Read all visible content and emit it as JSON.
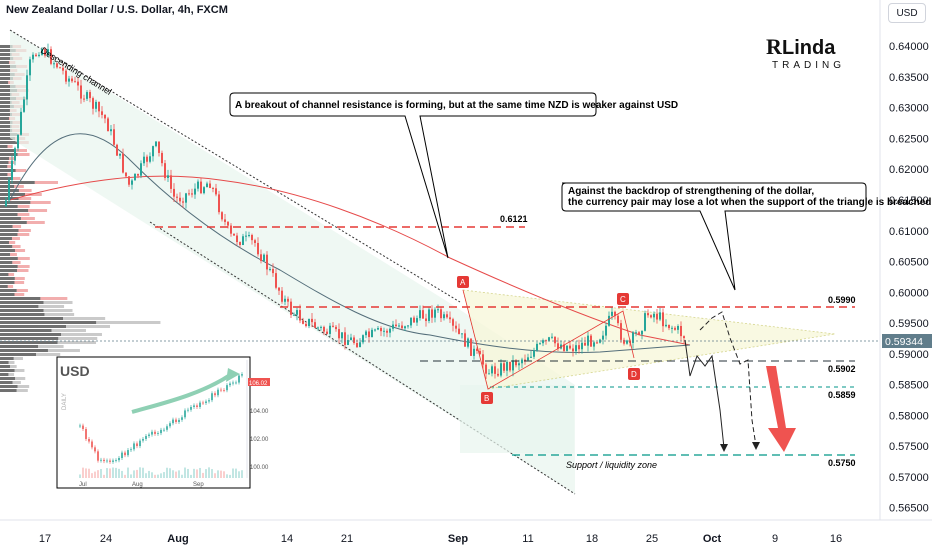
{
  "header": {
    "title": "New Zealand Dollar / U.S. Dollar, 4h, FXCM",
    "currency_button": "USD"
  },
  "logo": {
    "line1": "Linda",
    "line2": "TRADING"
  },
  "colors": {
    "up": "#26a69a",
    "down": "#ef5350",
    "ma_red": "#e64a4a",
    "ma_gray": "#546e7a",
    "price_badge": "#607d8b",
    "arrow_red": "#ef5350"
  },
  "annotations": {
    "callout1": "A breakout of channel resistance is forming, but at the same time NZD is weaker against USD",
    "callout2_line1": "Against the backdrop of strengthening of the dollar,",
    "callout2_line2": "the currency pair may lose a lot when the support of the triangle is breached",
    "channel_label": "Descending channel",
    "zone_label": "Support / liquidity zone",
    "point_a": "A",
    "point_b": "B",
    "point_c": "C",
    "point_d": "D"
  },
  "levels": [
    {
      "value": 0.6121,
      "label": "0.6121"
    },
    {
      "value": 0.599,
      "label": "0.5990"
    },
    {
      "value": 0.5902,
      "label": "0.5902"
    },
    {
      "value": 0.5859,
      "label": "0.5859"
    },
    {
      "value": 0.575,
      "label": "0.5750"
    }
  ],
  "current_price": "0.59344",
  "inset": {
    "title": "USD",
    "badge": "106.02",
    "axis_label": "DAILY",
    "y_ticks": [
      "104.00",
      "102.00",
      "100.00"
    ],
    "x_ticks": [
      "Jul",
      "Aug",
      "Sep"
    ]
  },
  "chart_data": {
    "type": "candlestick",
    "title": "New Zealand Dollar / U.S. Dollar, 4h, FXCM",
    "ylim": [
      0.563,
      0.6475
    ],
    "y_ticks": [
      "0.64000",
      "0.63500",
      "0.63000",
      "0.62500",
      "0.62000",
      "0.61500",
      "0.61000",
      "0.60500",
      "0.60000",
      "0.59500",
      "0.59000",
      "0.58500",
      "0.58000",
      "0.57500",
      "0.57000",
      "0.56500"
    ],
    "x_ticks": [
      "17",
      "24",
      "Aug",
      "14",
      "21",
      "Sep",
      "11",
      "18",
      "25",
      "Oct",
      "9",
      "16"
    ],
    "ohlc_close_path": [
      {
        "x": "Jul 14",
        "close": 0.614
      },
      {
        "x": "Jul 17",
        "close": 0.637
      },
      {
        "x": "Jul 20",
        "close": 0.64
      },
      {
        "x": "Jul 24",
        "close": 0.628
      },
      {
        "x": "Jul 27",
        "close": 0.617
      },
      {
        "x": "Aug 1",
        "close": 0.624
      },
      {
        "x": "Aug 3",
        "close": 0.615
      },
      {
        "x": "Aug 7",
        "close": 0.618
      },
      {
        "x": "Aug 9",
        "close": 0.609
      },
      {
        "x": "Aug 11",
        "close": 0.608
      },
      {
        "x": "Aug 15",
        "close": 0.597
      },
      {
        "x": "Aug 18",
        "close": 0.594
      },
      {
        "x": "Aug 22",
        "close": 0.592
      },
      {
        "x": "Aug 25",
        "close": 0.594
      },
      {
        "x": "Aug 29",
        "close": 0.597
      },
      {
        "x": "Sep 1",
        "close": 0.592
      },
      {
        "x": "Sep 4",
        "close": 0.587
      },
      {
        "x": "Sep 8",
        "close": 0.589
      },
      {
        "x": "Sep 12",
        "close": 0.592
      },
      {
        "x": "Sep 15",
        "close": 0.591
      },
      {
        "x": "Sep 19",
        "close": 0.593
      },
      {
        "x": "Sep 21",
        "close": 0.596
      },
      {
        "x": "Sep 22",
        "close": 0.591
      },
      {
        "x": "Sep 25",
        "close": 0.597
      },
      {
        "x": "Sep 28",
        "close": 0.593
      }
    ],
    "channel_label": "Descending channel",
    "legend": "none"
  }
}
